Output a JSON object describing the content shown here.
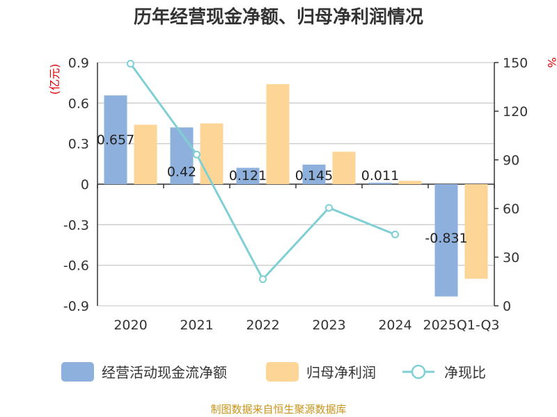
{
  "chart_data": {
    "type": "bar",
    "title": "历年经营现金净额、归母净利润情况",
    "left_unit": "(亿元)",
    "right_unit": "%",
    "categories": [
      "2020",
      "2021",
      "2022",
      "2023",
      "2024",
      "2025Q1-Q3"
    ],
    "series": [
      {
        "name": "经营活动现金流净额",
        "type": "bar",
        "axis": "left",
        "color": "#8eb0dd",
        "values": [
          0.657,
          0.42,
          0.121,
          0.145,
          0.011,
          -0.831
        ],
        "labels": [
          "0.657",
          "0.42",
          "0.121",
          "0.145",
          "0.011",
          "-0.831"
        ]
      },
      {
        "name": "归母净利润",
        "type": "bar",
        "axis": "left",
        "color": "#fdd697",
        "values": [
          0.44,
          0.45,
          0.74,
          0.24,
          0.025,
          -0.7
        ]
      },
      {
        "name": "净现比",
        "type": "line",
        "axis": "right",
        "color": "#7fcfd4",
        "values": [
          149.3,
          93.3,
          16.4,
          60.4,
          44.0,
          null
        ]
      }
    ],
    "left_axis": {
      "min": -0.9,
      "max": 0.9,
      "ticks": [
        "-0.9",
        "-0.6",
        "-0.3",
        "0",
        "0.3",
        "0.6",
        "0.9"
      ]
    },
    "right_axis": {
      "min": 0,
      "max": 150,
      "ticks": [
        "0",
        "30",
        "60",
        "90",
        "120",
        "150"
      ]
    },
    "grid": true,
    "legend_position": "bottom"
  },
  "source": "制图数据来自恒生聚源数据库"
}
